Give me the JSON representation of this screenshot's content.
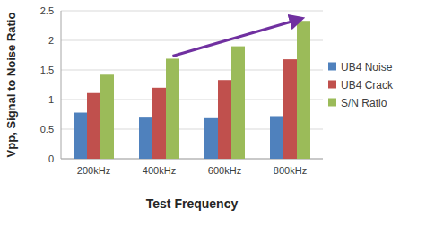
{
  "chart_data": {
    "type": "bar",
    "categories": [
      "200kHz",
      "400kHz",
      "600kHz",
      "800kHz"
    ],
    "series": [
      {
        "name": "UB4 Noise",
        "color": "#4f81bd",
        "values": [
          0.78,
          0.71,
          0.7,
          0.72
        ]
      },
      {
        "name": "UB4 Crack",
        "color": "#c0504d",
        "values": [
          1.11,
          1.2,
          1.33,
          1.68
        ]
      },
      {
        "name": "S/N Ratio",
        "color": "#9bbb59",
        "values": [
          1.42,
          1.69,
          1.9,
          2.33
        ]
      }
    ],
    "ylim": [
      0,
      2.5
    ],
    "yticks": [
      0,
      0.5,
      1,
      1.5,
      2,
      2.5
    ],
    "grid": true,
    "legend": "right",
    "xlabel": "Test Frequency",
    "ylabel": "Vpp, Signal to Noise Ratio"
  }
}
